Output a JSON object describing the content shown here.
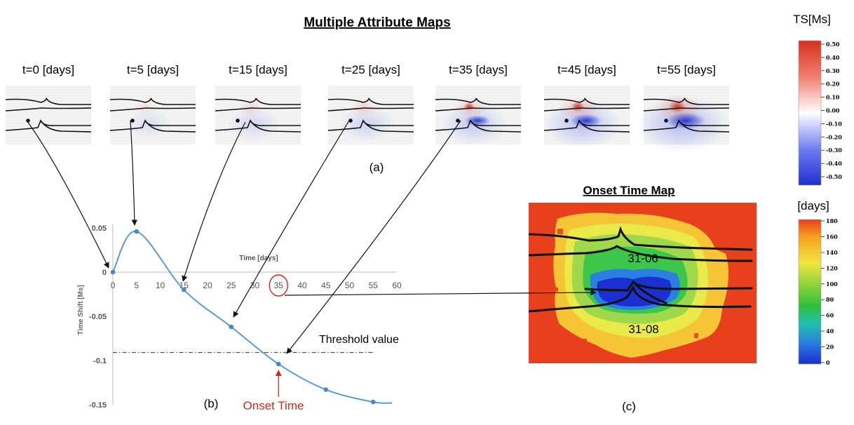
{
  "top": {
    "title": "Multiple Attribute Maps",
    "label": "(a)",
    "maps": [
      {
        "label": "t=0 [days]",
        "intensity": 0.0
      },
      {
        "label": "t=5 [days]",
        "intensity": 0.35
      },
      {
        "label": "t=15 [days]",
        "intensity": 0.45
      },
      {
        "label": "t=25 [days]",
        "intensity": 0.5
      },
      {
        "label": "t=35 [days]",
        "intensity": 0.65
      },
      {
        "label": "t=45 [days]",
        "intensity": 0.8
      },
      {
        "label": "t=55 [days]",
        "intensity": 1.0
      }
    ]
  },
  "ts_colorbar": {
    "title": "TS[Ms]",
    "ticks": [
      "0.50",
      "0.40",
      "0.30",
      "0.20",
      "0.10",
      "0.00",
      "-0.10",
      "-0.20",
      "-0.30",
      "-0.40",
      "-0.50"
    ]
  },
  "days_colorbar": {
    "title": "[days]",
    "ticks": [
      "180",
      "160",
      "140",
      "120",
      "100",
      "80",
      "60",
      "40",
      "20",
      "0"
    ]
  },
  "chart": {
    "label": "(b)",
    "ylabel": "Time Shift [Ms]",
    "xlabel": "Time [days]",
    "threshold_label": "Threshold value",
    "onset_label": "Onset Time",
    "highlight_tick": "35"
  },
  "chart_data": {
    "type": "line",
    "x": [
      0,
      5,
      15,
      25,
      35,
      45,
      55
    ],
    "y": [
      0,
      0.046,
      -0.02,
      -0.062,
      -0.104,
      -0.133,
      -0.147
    ],
    "ylim": [
      -0.15,
      0.05
    ],
    "yticks": [
      "0.05",
      "0",
      "-0.05",
      "-0.1",
      "-0.15"
    ],
    "xticks": [
      "0",
      "5",
      "10",
      "15",
      "20",
      "25",
      "30",
      "35",
      "40",
      "45",
      "50",
      "55",
      "60"
    ],
    "threshold": -0.091,
    "grid": false
  },
  "onset_map": {
    "title": "Onset Time Map",
    "label": "(c)",
    "well_labels": [
      "31-06",
      "31-08"
    ]
  },
  "colors": {
    "line": "#5b9bd5",
    "point": "#4f86c6",
    "onset": "#d9261c"
  }
}
